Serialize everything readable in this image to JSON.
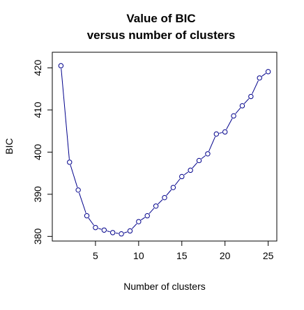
{
  "chart_data": {
    "type": "line",
    "title": "Value of BIC",
    "subtitle": "versus number of clusters",
    "xlabel": "Number of clusters",
    "ylabel": "BIC",
    "x": [
      1,
      2,
      3,
      4,
      5,
      6,
      7,
      8,
      9,
      10,
      11,
      12,
      13,
      14,
      15,
      16,
      17,
      18,
      19,
      20,
      21,
      22,
      23,
      24,
      25
    ],
    "series": [
      {
        "values": [
          420.5,
          397.6,
          391.0,
          384.9,
          382.1,
          381.5,
          380.9,
          380.6,
          381.3,
          383.5,
          384.9,
          387.2,
          389.2,
          391.6,
          394.2,
          395.7,
          398.0,
          399.6,
          404.3,
          404.8,
          408.6,
          411.0,
          413.2,
          417.6,
          419.1
        ]
      }
    ],
    "xlim": [
      0,
      26
    ],
    "ylim": [
      378.9,
      423.7
    ],
    "x_ticks": [
      5,
      10,
      15,
      20,
      25
    ],
    "y_ticks": [
      380,
      390,
      400,
      410,
      420
    ],
    "x_tick_labels": [
      "5",
      "10",
      "15",
      "20",
      "25"
    ],
    "y_tick_labels": [
      "380",
      "390",
      "400",
      "410",
      "420"
    ],
    "line_color": "#00008b",
    "marker": "open-circle",
    "grid": false,
    "legend": "none"
  }
}
